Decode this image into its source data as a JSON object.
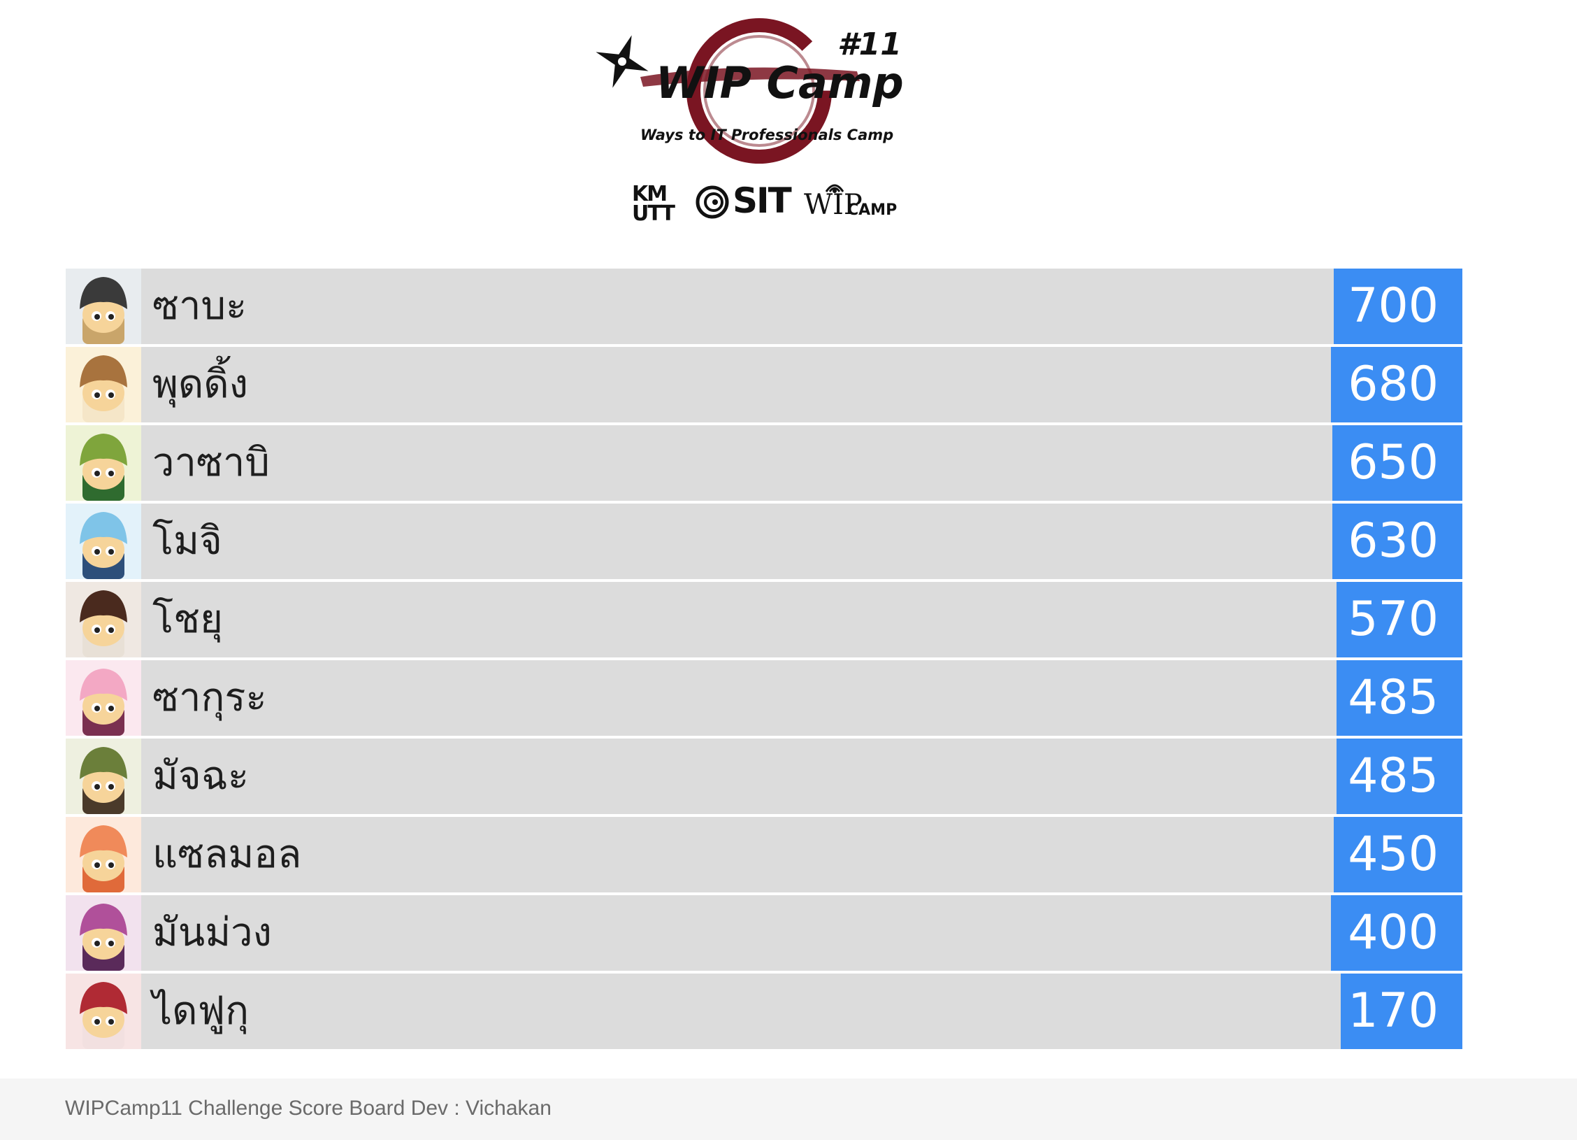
{
  "header": {
    "logo_text": "WIP Camp",
    "logo_number": "#11",
    "logo_tagline": "Ways to IT Professionals Camp",
    "partners": {
      "kmutt_top": "KM",
      "kmutt_bottom": "UTT",
      "sit": "SIT",
      "wip": "WIP",
      "camp": "CAMP"
    },
    "colors": {
      "ring": "#7a1522",
      "ink": "#111111"
    }
  },
  "scoreboard": {
    "score_color": "#3b8df3",
    "row_color": "#dcdcdc",
    "teams": [
      {
        "name": "ซาบะ",
        "score": "700",
        "avatar_icon": "saba-avatar-icon",
        "hat": "#3a3a3a",
        "accent": "#c9a56a",
        "bg": "#e8ecef"
      },
      {
        "name": "พุดดิ้ง",
        "score": "680",
        "avatar_icon": "pudding-avatar-icon",
        "hat": "#a8733e",
        "accent": "#f5e6c8",
        "bg": "#fbf1d9"
      },
      {
        "name": "วาซาบิ",
        "score": "650",
        "avatar_icon": "wasabi-avatar-icon",
        "hat": "#7fa53c",
        "accent": "#2f6b2f",
        "bg": "#eef3d6"
      },
      {
        "name": "โมจิ",
        "score": "630",
        "avatar_icon": "mochi-avatar-icon",
        "hat": "#7fc4e8",
        "accent": "#2d4f7a",
        "bg": "#e3f2fa"
      },
      {
        "name": "โชยุ",
        "score": "570",
        "avatar_icon": "shoyu-avatar-icon",
        "hat": "#4a2a1e",
        "accent": "#e8e0d6",
        "bg": "#efe8e2"
      },
      {
        "name": "ซากุระ",
        "score": "485",
        "avatar_icon": "sakura-avatar-icon",
        "hat": "#f3a8c4",
        "accent": "#7a3050",
        "bg": "#fbe8ef"
      },
      {
        "name": "มัจฉะ",
        "score": "485",
        "avatar_icon": "matcha-avatar-icon",
        "hat": "#6b7f3a",
        "accent": "#4a3a2a",
        "bg": "#eef0e0"
      },
      {
        "name": "แซลมอล",
        "score": "450",
        "avatar_icon": "salmon-avatar-icon",
        "hat": "#f08a5a",
        "accent": "#e06a3a",
        "bg": "#fde9dc"
      },
      {
        "name": "มันม่วง",
        "score": "400",
        "avatar_icon": "purple-yam-avatar-icon",
        "hat": "#b0509a",
        "accent": "#5a2a5a",
        "bg": "#f2e2ee"
      },
      {
        "name": "ไดฟูกุ",
        "score": "170",
        "avatar_icon": "daifuku-avatar-icon",
        "hat": "#b02a34",
        "accent": "#f2e0e0",
        "bg": "#f7e4e4"
      }
    ]
  },
  "footer": {
    "text": "WIPCamp11 Challenge Score Board Dev : Vichakan"
  }
}
